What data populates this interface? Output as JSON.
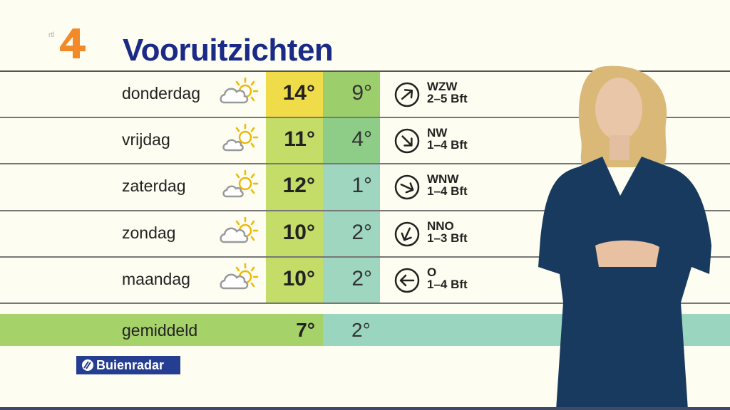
{
  "channel_logo": {
    "text": "rtl 4",
    "colors": {
      "four": "#f28a2a",
      "rtl": "#aaaaaa"
    }
  },
  "title": "Vooruitzichten",
  "rows": [
    {
      "day": "donderdag",
      "icon": "partly-cloudy-icon",
      "high": "14°",
      "low": "9°",
      "wind_dir": "WZW",
      "wind_force": "2–5 Bft",
      "high_color": "#f0dc48",
      "low_color": "#9ccf6c",
      "arrow_rotation_deg": -40
    },
    {
      "day": "vrijdag",
      "icon": "sun-cloud-icon",
      "high": "11°",
      "low": "4°",
      "wind_dir": "NW",
      "wind_force": "1–4 Bft",
      "high_color": "#c4dc68",
      "low_color": "#8ecd88",
      "arrow_rotation_deg": 45
    },
    {
      "day": "zaterdag",
      "icon": "sun-cloud-icon",
      "high": "12°",
      "low": "1°",
      "wind_dir": "WNW",
      "wind_force": "1–4 Bft",
      "high_color": "#c4dc68",
      "low_color": "#9ed6c0",
      "arrow_rotation_deg": 25
    },
    {
      "day": "zondag",
      "icon": "partly-cloudy-icon",
      "high": "10°",
      "low": "2°",
      "wind_dir": "NNO",
      "wind_force": "1–3 Bft",
      "high_color": "#c4dc68",
      "low_color": "#9ed6c0",
      "arrow_rotation_deg": 115
    },
    {
      "day": "maandag",
      "icon": "partly-cloudy-icon",
      "high": "10°",
      "low": "2°",
      "wind_dir": "O",
      "wind_force": "1–4 Bft",
      "high_color": "#c4dc68",
      "low_color": "#9ed6c0",
      "arrow_rotation_deg": 180
    }
  ],
  "average": {
    "label": "gemiddeld",
    "high": "7°",
    "low": "2°",
    "high_color": "#a6d26a",
    "low_color": "#9ad6bf"
  },
  "source_logo": "Buienradar",
  "colors": {
    "title": "#1a2a86",
    "background": "#fdfdf1",
    "source_bg": "#253e92"
  }
}
